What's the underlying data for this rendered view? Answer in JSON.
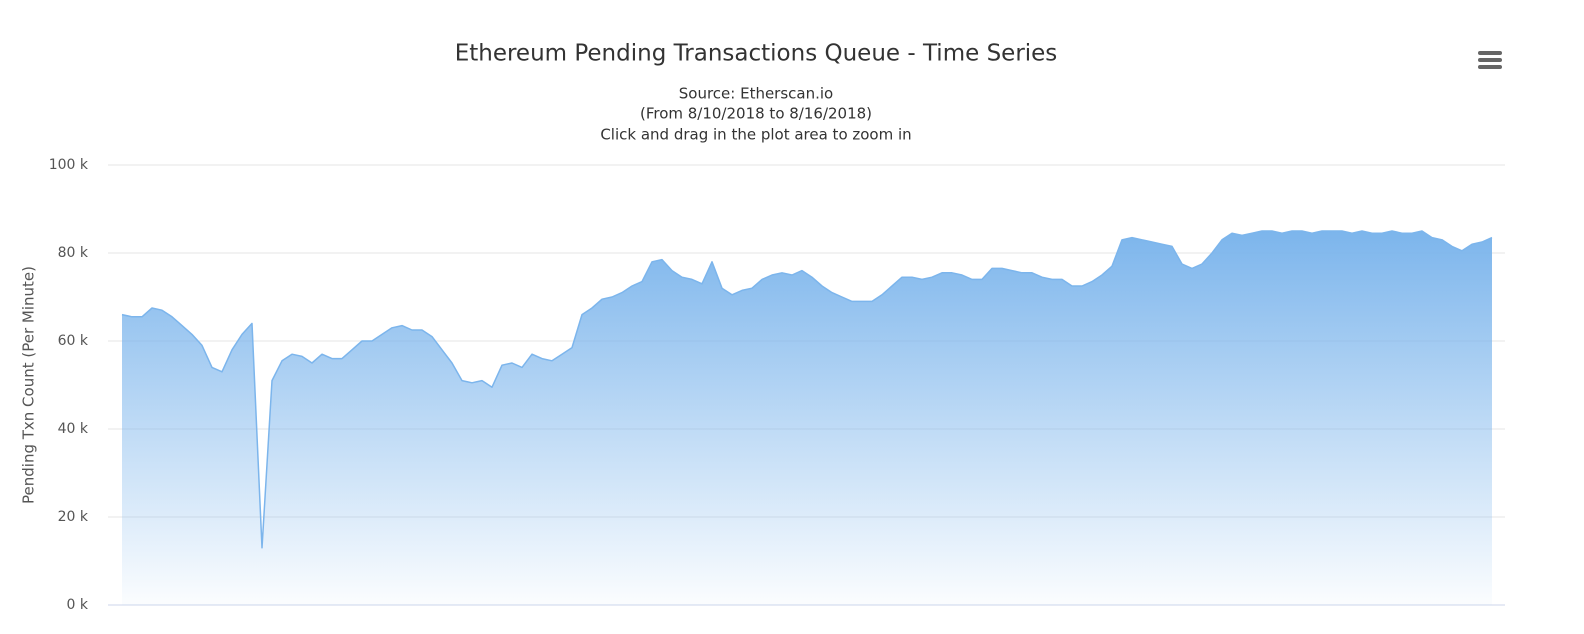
{
  "chart_data": {
    "type": "area",
    "title": "Ethereum Pending Transactions Queue - Time Series",
    "subtitle": [
      "Source: Etherscan.io",
      "(From 8/10/2018 to 8/16/2018)",
      "Click and drag in the plot area to zoom in"
    ],
    "y_label": "Pending Txn Count (Per Minute)",
    "color": "#7cb5ec",
    "grid": true,
    "ylim": [
      0,
      100000
    ],
    "yticks": [
      {
        "value": 0,
        "label": "0 k"
      },
      {
        "value": 20000,
        "label": "20 k"
      },
      {
        "value": 40000,
        "label": "40 k"
      },
      {
        "value": 60000,
        "label": "60 k"
      },
      {
        "value": 80000,
        "label": "80 k"
      },
      {
        "value": 100000,
        "label": "100 k"
      }
    ],
    "values": [
      66000,
      65500,
      65500,
      67500,
      67000,
      65500,
      63500,
      61500,
      59000,
      54000,
      53000,
      58000,
      61500,
      64000,
      13000,
      51000,
      55500,
      57000,
      56500,
      55000,
      57000,
      56000,
      56000,
      58000,
      60000,
      60000,
      61500,
      63000,
      63500,
      62500,
      62500,
      61000,
      58000,
      55000,
      51000,
      50500,
      51000,
      49500,
      54500,
      55000,
      54000,
      57000,
      56000,
      55500,
      57000,
      58500,
      66000,
      67500,
      69500,
      70000,
      71000,
      72500,
      73500,
      78000,
      78500,
      76000,
      74500,
      74000,
      73000,
      78000,
      72000,
      70500,
      71500,
      72000,
      74000,
      75000,
      75500,
      75000,
      76000,
      74500,
      72500,
      71000,
      70000,
      69000,
      69000,
      69000,
      70500,
      72500,
      74500,
      74500,
      74000,
      74500,
      75500,
      75500,
      75000,
      74000,
      74000,
      76500,
      76500,
      76000,
      75500,
      75500,
      74500,
      74000,
      74000,
      72500,
      72500,
      73500,
      75000,
      77000,
      83000,
      83500,
      83000,
      82500,
      82000,
      81500,
      77500,
      76500,
      77500,
      80000,
      83000,
      84500,
      84000,
      84500,
      85000,
      85000,
      84500,
      85000,
      85000,
      84500,
      85000,
      85000,
      85000,
      84500,
      85000,
      84500,
      84500,
      85000,
      84500,
      84500,
      85000,
      83500,
      83000,
      81500,
      80500,
      82000,
      82500,
      83500
    ]
  }
}
